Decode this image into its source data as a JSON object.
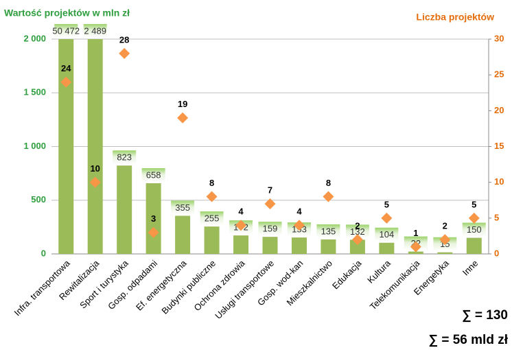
{
  "chart_data": {
    "type": "bar",
    "y_label": "Wartość projektów w mln zł",
    "y2_label": "Liczba projektów",
    "categories": [
      "Infra. transportowa",
      "Rewitalizacja",
      "Sport i turystyka",
      "Gosp. odpadami",
      "Ef. energetyczna",
      "Budynki publiczne",
      "Ochrona zdrowia",
      "Usługi transportowe",
      "Gosp. wod-kan",
      "Mieszkalnictwo",
      "Edukacja",
      "Kultura",
      "Telekomunikacja",
      "Energetyka",
      "Inne"
    ],
    "series": [
      {
        "type": "bar",
        "color": "#9bbb59",
        "values": [
          50472,
          2489,
          823,
          658,
          355,
          255,
          172,
          159,
          153,
          135,
          132,
          104,
          22,
          15,
          150
        ],
        "value_labels": [
          "50 472",
          "2 489",
          "823",
          "658",
          "355",
          "255",
          "172",
          "159",
          "153",
          "135",
          "132",
          "104",
          "22",
          "15",
          "150"
        ]
      },
      {
        "type": "scatter",
        "axis": "y2",
        "color": "#f79646",
        "values": [
          24,
          10,
          28,
          3,
          19,
          8,
          4,
          7,
          4,
          8,
          2,
          5,
          1,
          2,
          5
        ]
      }
    ],
    "ylim": [
      0,
      2000
    ],
    "yticks": [
      0,
      500,
      {
        "value": 1000,
        "label": "1 000"
      },
      {
        "value": 1500,
        "label": "1 500"
      },
      {
        "value": 2000,
        "label": "2 000"
      }
    ],
    "y2lim": [
      0,
      30
    ],
    "y2ticks": [
      0,
      5,
      10,
      15,
      20,
      25,
      30
    ],
    "grid": true,
    "y_color": "#2e9e3e",
    "y2_color": "#e46c0a",
    "annotations": [
      "∑ = 130",
      "∑ = 56 mld zł"
    ]
  }
}
